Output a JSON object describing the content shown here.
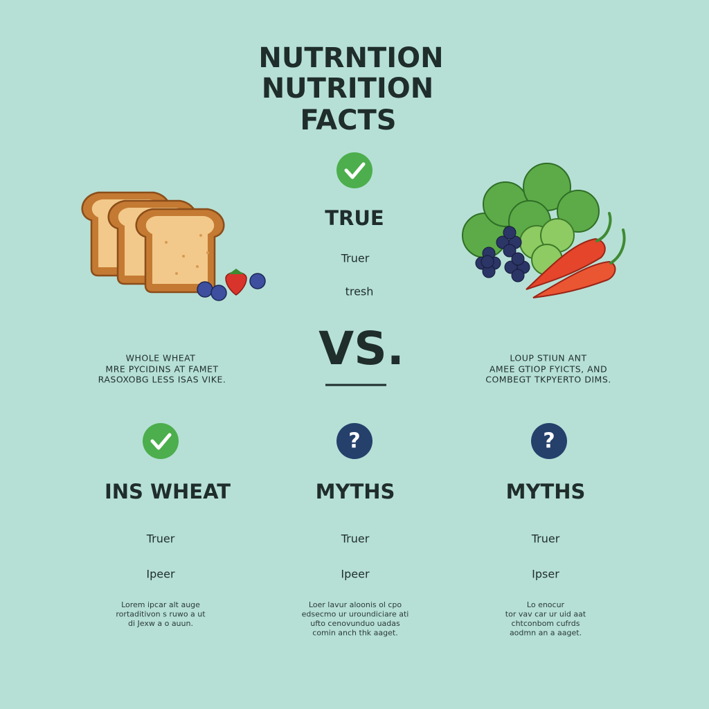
{
  "header": {
    "title_lines": [
      "NUTRNTION",
      "NUTRITION",
      "FACTS"
    ]
  },
  "center": {
    "heading": "TRUE",
    "line1": "Truer",
    "line2": "tresh",
    "vs": "VS."
  },
  "left_description": [
    "WHOLE WHEAT",
    "MRE PYCIDINS AT FAMET",
    "RASOXOBG LESS ISAS VIKE."
  ],
  "right_description": [
    "LOUP STIUN ANT",
    "AMEE GTIOP FYICTS, AND",
    "COMBEGT TKPYERTO DIMS."
  ],
  "columns": [
    {
      "heading": "INS WHEAT",
      "line1": "Truer",
      "line2": "Ipeer",
      "body": [
        "Lorem ipcar alt auge",
        "rortaditivon s ruwo a ut",
        "di Jexw a o auun."
      ]
    },
    {
      "heading": "MYTHS",
      "line1": "Truer",
      "line2": "Ipeer",
      "body": [
        "Loer lavur aloonis ol cpo",
        "edsecmo ur uroundiciare ati",
        "ufto cenovunduo uadas",
        "comin anch thk aaget."
      ]
    },
    {
      "heading": "MYTHS",
      "line1": "Truer",
      "line2": "Ipser",
      "body": [
        "Lo enocur",
        "tor vav car ur uid aat",
        "chtconbom cufrds",
        "aodmn an a aaget."
      ]
    }
  ]
}
